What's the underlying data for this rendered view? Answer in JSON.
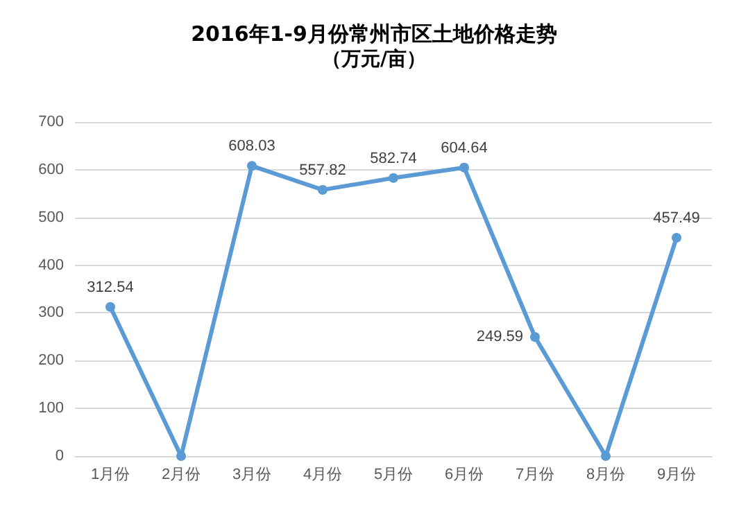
{
  "chart_data": {
    "type": "line",
    "title": "2016年1-9月份常州市区土地价格走势",
    "subtitle": "（万元/亩）",
    "categories": [
      "1月份",
      "2月份",
      "3月份",
      "4月份",
      "5月份",
      "6月份",
      "7月份",
      "8月份",
      "9月份"
    ],
    "series": [
      {
        "color": "#5b9bd5",
        "values": [
          312.54,
          0,
          608.03,
          557.82,
          582.74,
          604.64,
          249.59,
          0,
          457.49
        ],
        "value_labels": [
          "312.54",
          null,
          "608.03",
          "557.82",
          "582.74",
          "604.64",
          "249.59",
          null,
          "457.49"
        ]
      }
    ],
    "ylim": [
      0,
      700
    ],
    "yticks": [
      0,
      100,
      200,
      300,
      400,
      500,
      600,
      700
    ],
    "grid": "y",
    "marker": "circle",
    "line_style": "solid"
  }
}
